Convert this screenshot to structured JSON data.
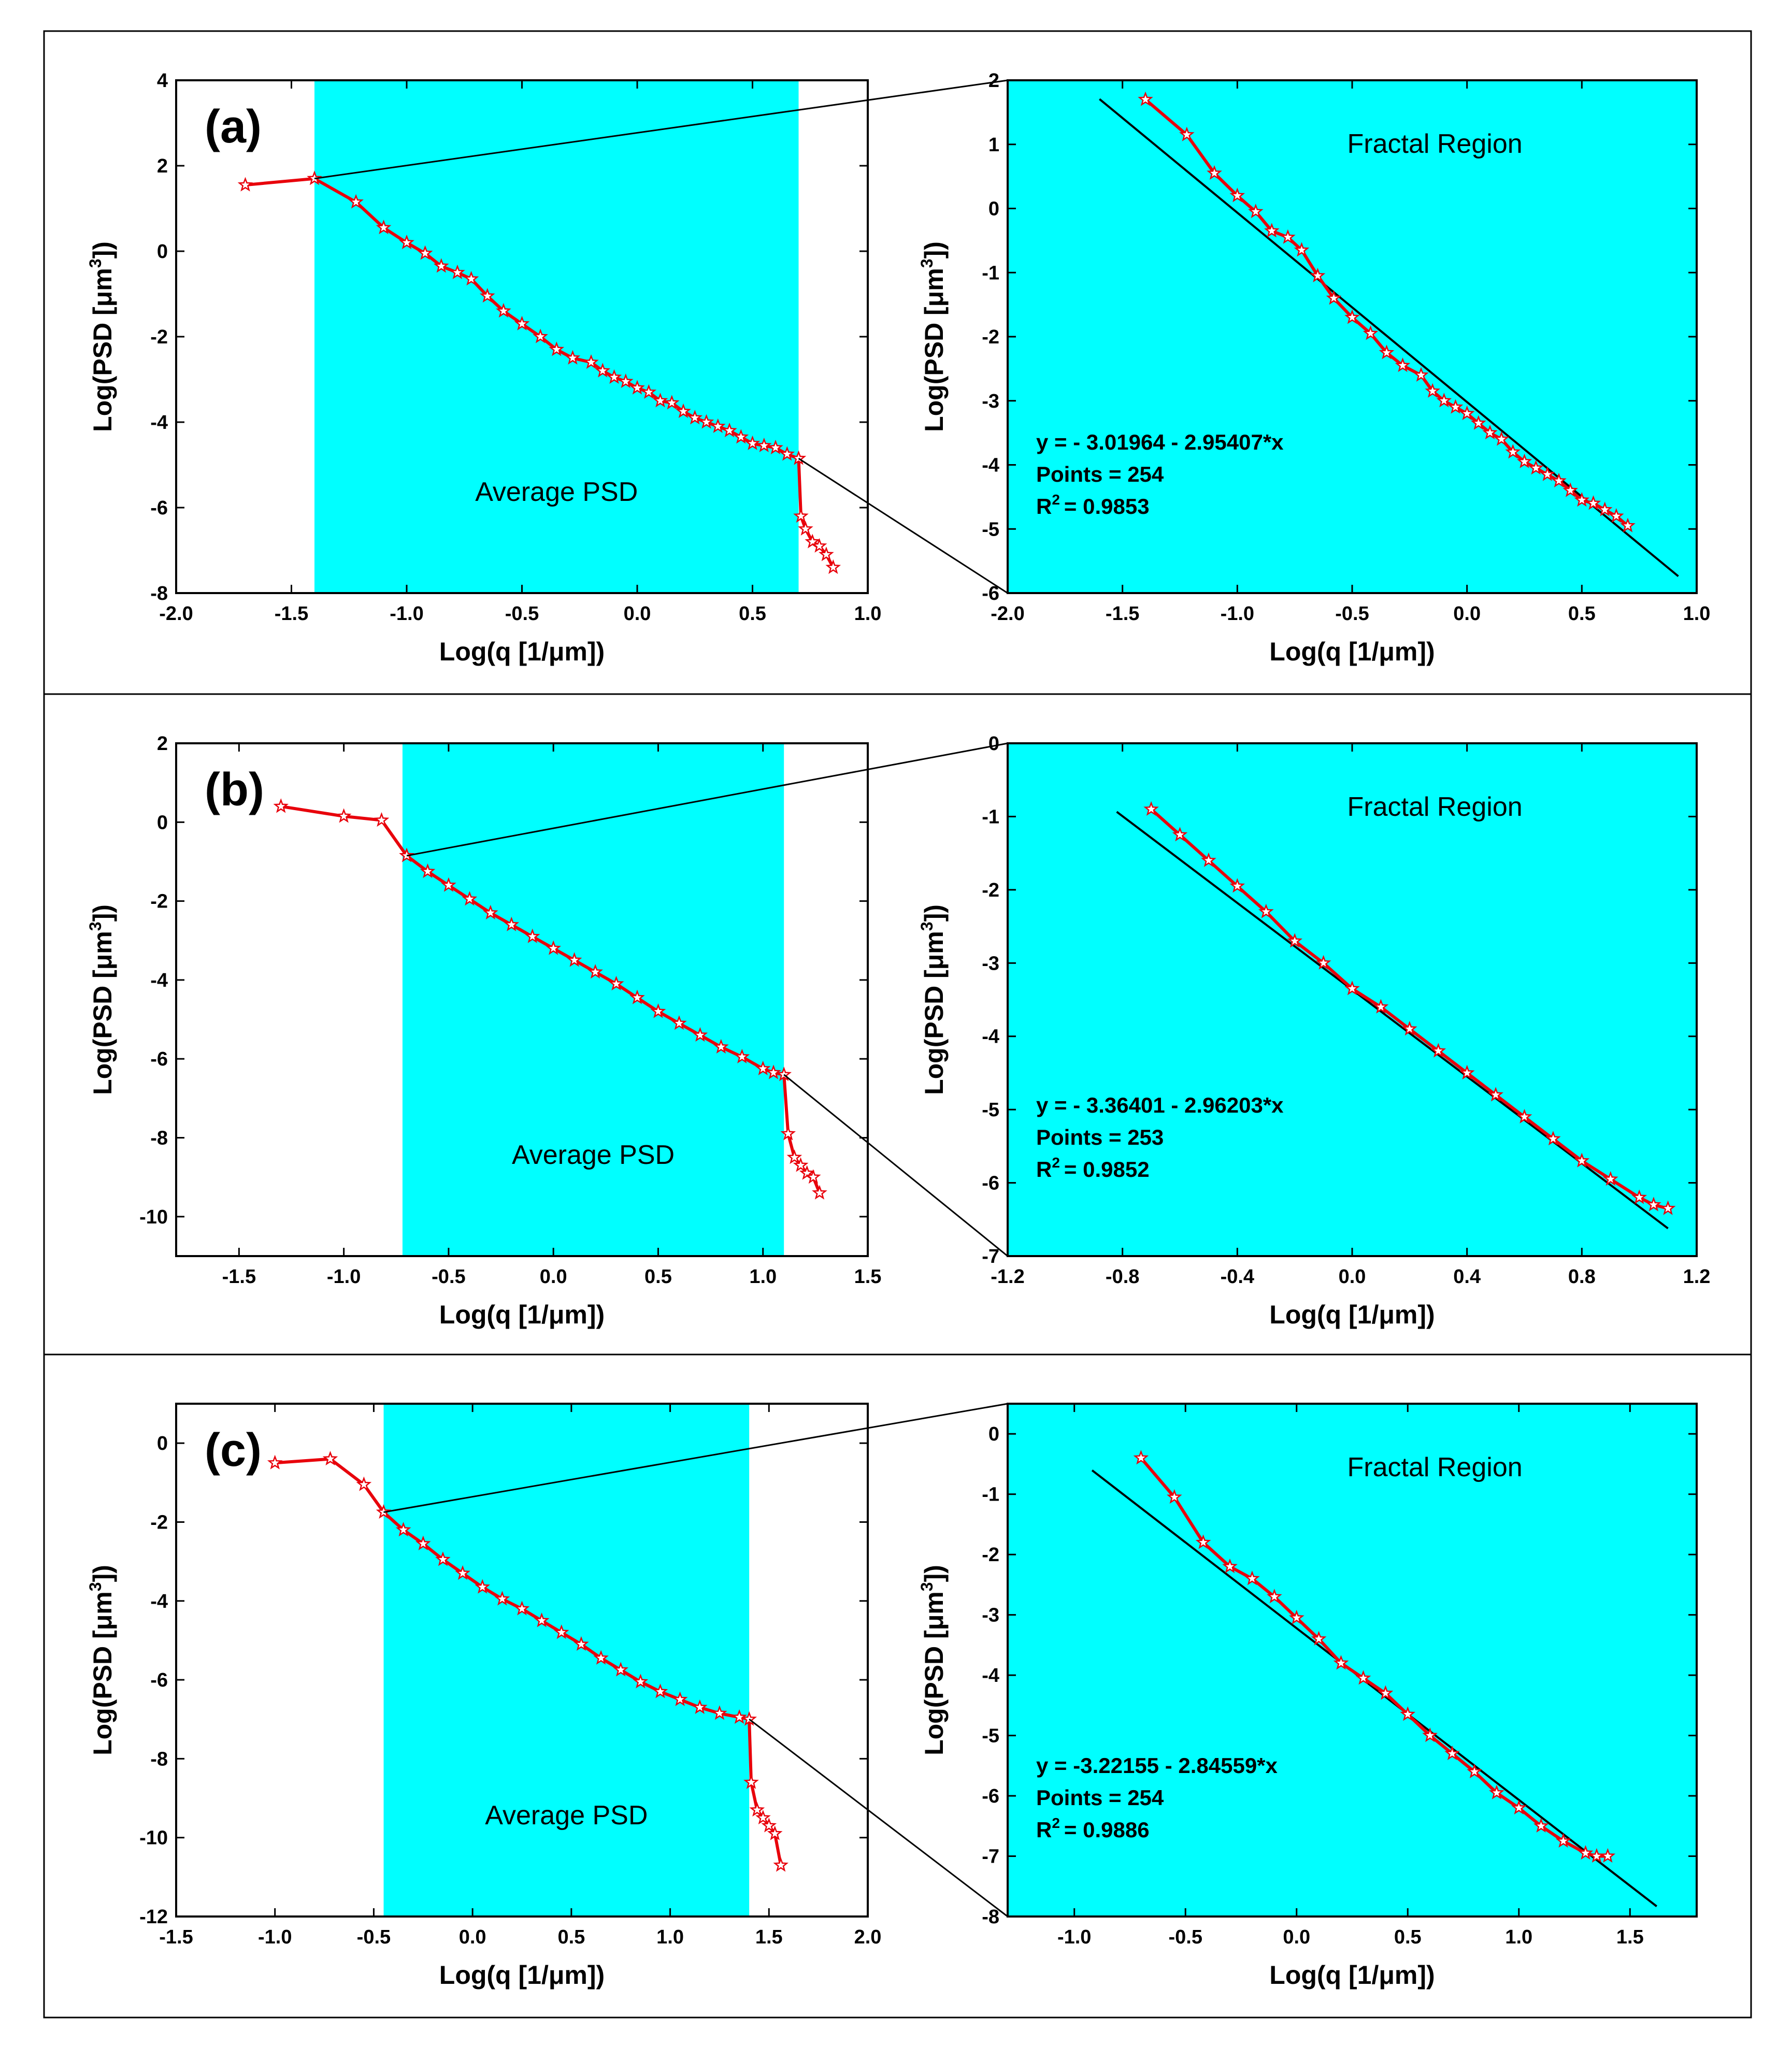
{
  "figure": {
    "colors": {
      "shade": "#00ffff",
      "data_line": "#e8000b",
      "marker_fill": "#ffffff",
      "fit_line": "#000000",
      "axis": "#000000"
    },
    "shared": {
      "xlabel": "Log(q [1/μm])",
      "ylabel_prefix": "Log(PSD [μm",
      "ylabel_sup": "3",
      "ylabel_suffix": "])"
    }
  },
  "chart_data": [
    {
      "id": "a",
      "type": "line",
      "panel_label": "(a)",
      "left": {
        "annotation": "Average PSD",
        "xlim": [
          -2.0,
          1.0
        ],
        "ylim": [
          -8,
          4
        ],
        "xticks": [
          "-2.0",
          "-1.5",
          "-1.0",
          "-0.5",
          "0.0",
          "0.5",
          "1.0"
        ],
        "yticks": [
          "-8",
          "-6",
          "-4",
          "-2",
          "0",
          "2",
          "4"
        ],
        "fractal_range": [
          -1.4,
          0.7
        ],
        "series": {
          "name": "Average PSD",
          "x": [
            -1.7,
            -1.4,
            -1.22,
            -1.1,
            -1.0,
            -0.92,
            -0.85,
            -0.78,
            -0.72,
            -0.65,
            -0.58,
            -0.5,
            -0.42,
            -0.35,
            -0.28,
            -0.2,
            -0.15,
            -0.1,
            -0.05,
            0.0,
            0.05,
            0.1,
            0.15,
            0.2,
            0.25,
            0.3,
            0.35,
            0.4,
            0.45,
            0.5,
            0.55,
            0.6,
            0.65,
            0.7,
            0.71,
            0.73,
            0.76,
            0.79,
            0.82,
            0.85
          ],
          "y": [
            1.55,
            1.7,
            1.15,
            0.55,
            0.2,
            -0.05,
            -0.35,
            -0.5,
            -0.65,
            -1.05,
            -1.4,
            -1.7,
            -2.0,
            -2.3,
            -2.5,
            -2.6,
            -2.8,
            -2.95,
            -3.05,
            -3.2,
            -3.3,
            -3.5,
            -3.55,
            -3.75,
            -3.9,
            -4.0,
            -4.1,
            -4.2,
            -4.35,
            -4.5,
            -4.55,
            -4.6,
            -4.75,
            -4.85,
            -6.2,
            -6.5,
            -6.8,
            -6.9,
            -7.1,
            -7.4
          ]
        }
      },
      "right": {
        "annotation": "Fractal Region",
        "xlim": [
          -2.0,
          1.0
        ],
        "ylim": [
          -6,
          2
        ],
        "xticks": [
          "-2.0",
          "-1.5",
          "-1.0",
          "-0.5",
          "0.0",
          "0.5",
          "1.0"
        ],
        "yticks": [
          "-6",
          "-5",
          "-4",
          "-3",
          "-2",
          "-1",
          "0",
          "1",
          "2"
        ],
        "fit": {
          "intercept": -3.01964,
          "slope": -2.95407,
          "x_range": [
            -1.6,
            0.92
          ]
        },
        "fit_text": [
          "y = - 3.01964 - 2.95407*x",
          "Points = 254",
          "= 0.9853"
        ],
        "series": {
          "name": "Fractal Region",
          "x": [
            -1.4,
            -1.22,
            -1.1,
            -1.0,
            -0.92,
            -0.85,
            -0.78,
            -0.72,
            -0.65,
            -0.58,
            -0.5,
            -0.42,
            -0.35,
            -0.28,
            -0.2,
            -0.15,
            -0.1,
            -0.05,
            0.0,
            0.05,
            0.1,
            0.15,
            0.2,
            0.25,
            0.3,
            0.35,
            0.4,
            0.45,
            0.5,
            0.55,
            0.6,
            0.65,
            0.7
          ],
          "y": [
            1.7,
            1.15,
            0.55,
            0.2,
            -0.05,
            -0.35,
            -0.45,
            -0.65,
            -1.05,
            -1.4,
            -1.7,
            -1.95,
            -2.25,
            -2.45,
            -2.6,
            -2.85,
            -3.0,
            -3.1,
            -3.2,
            -3.35,
            -3.5,
            -3.6,
            -3.8,
            -3.95,
            -4.05,
            -4.15,
            -4.25,
            -4.4,
            -4.55,
            -4.6,
            -4.7,
            -4.8,
            -4.95
          ]
        }
      }
    },
    {
      "id": "b",
      "type": "line",
      "panel_label": "(b)",
      "left": {
        "annotation": "Average PSD",
        "xlim": [
          -1.8,
          1.5
        ],
        "ylim": [
          -11,
          2
        ],
        "xticks": [
          "-1.5",
          "-1.0",
          "-0.5",
          "0.0",
          "0.5",
          "1.0",
          "1.5"
        ],
        "yticks": [
          "-10",
          "-8",
          "-6",
          "-4",
          "-2",
          "0",
          "2"
        ],
        "fractal_range": [
          -0.72,
          1.1
        ],
        "series": {
          "name": "Average PSD",
          "x": [
            -1.3,
            -1.0,
            -0.82,
            -0.7,
            -0.6,
            -0.5,
            -0.4,
            -0.3,
            -0.2,
            -0.1,
            0.0,
            0.1,
            0.2,
            0.3,
            0.4,
            0.5,
            0.6,
            0.7,
            0.8,
            0.9,
            1.0,
            1.05,
            1.1,
            1.12,
            1.15,
            1.18,
            1.21,
            1.24,
            1.27
          ],
          "y": [
            0.4,
            0.15,
            0.05,
            -0.85,
            -1.25,
            -1.6,
            -1.95,
            -2.3,
            -2.6,
            -2.9,
            -3.2,
            -3.5,
            -3.8,
            -4.1,
            -4.45,
            -4.8,
            -5.1,
            -5.4,
            -5.7,
            -5.95,
            -6.25,
            -6.35,
            -6.4,
            -7.9,
            -8.5,
            -8.7,
            -8.9,
            -9.0,
            -9.4
          ]
        }
      },
      "right": {
        "annotation": "Fractal Region",
        "xlim": [
          -1.2,
          1.2
        ],
        "ylim": [
          -7,
          0
        ],
        "xticks": [
          "-1.2",
          "-0.8",
          "-0.4",
          "0.0",
          "0.4",
          "0.8",
          "1.2"
        ],
        "yticks": [
          "-7",
          "-6",
          "-5",
          "-4",
          "-3",
          "-2",
          "-1",
          "0"
        ],
        "fit": {
          "intercept": -3.36401,
          "slope": -2.96203,
          "x_range": [
            -0.82,
            1.1
          ]
        },
        "fit_text": [
          "y = - 3.36401 - 2.96203*x",
          "Points = 253",
          "= 0.9852"
        ],
        "series": {
          "name": "Fractal Region",
          "x": [
            -0.7,
            -0.6,
            -0.5,
            -0.4,
            -0.3,
            -0.2,
            -0.1,
            0.0,
            0.1,
            0.2,
            0.3,
            0.4,
            0.5,
            0.6,
            0.7,
            0.8,
            0.9,
            1.0,
            1.05,
            1.1
          ],
          "y": [
            -0.9,
            -1.25,
            -1.6,
            -1.95,
            -2.3,
            -2.7,
            -3.0,
            -3.35,
            -3.6,
            -3.9,
            -4.2,
            -4.5,
            -4.8,
            -5.1,
            -5.4,
            -5.7,
            -5.95,
            -6.2,
            -6.3,
            -6.35
          ]
        }
      }
    },
    {
      "id": "c",
      "type": "line",
      "panel_label": "(c)",
      "left": {
        "annotation": "Average PSD",
        "xlim": [
          -1.5,
          2.0
        ],
        "ylim": [
          -12,
          1
        ],
        "xticks": [
          "-1.5",
          "-1.0",
          "-0.5",
          "0.0",
          "0.5",
          "1.0",
          "1.5",
          "2.0"
        ],
        "yticks": [
          "-12",
          "-10",
          "-8",
          "-6",
          "-4",
          "-2",
          "0"
        ],
        "fractal_range": [
          -0.45,
          1.4
        ],
        "series": {
          "name": "Average PSD",
          "x": [
            -1.0,
            -0.72,
            -0.55,
            -0.45,
            -0.35,
            -0.25,
            -0.15,
            -0.05,
            0.05,
            0.15,
            0.25,
            0.35,
            0.45,
            0.55,
            0.65,
            0.75,
            0.85,
            0.95,
            1.05,
            1.15,
            1.25,
            1.35,
            1.4,
            1.41,
            1.44,
            1.47,
            1.5,
            1.53,
            1.56
          ],
          "y": [
            -0.5,
            -0.4,
            -1.05,
            -1.75,
            -2.2,
            -2.55,
            -2.95,
            -3.3,
            -3.65,
            -3.95,
            -4.2,
            -4.5,
            -4.8,
            -5.1,
            -5.45,
            -5.75,
            -6.05,
            -6.3,
            -6.5,
            -6.7,
            -6.85,
            -6.95,
            -7.0,
            -8.6,
            -9.3,
            -9.5,
            -9.7,
            -9.9,
            -10.7
          ]
        }
      },
      "right": {
        "annotation": "Fractal Region",
        "xlim": [
          -1.3,
          1.8
        ],
        "ylim": [
          -8,
          0.5
        ],
        "xticks": [
          "-1.0",
          "-0.5",
          "0.0",
          "0.5",
          "1.0",
          "1.5"
        ],
        "yticks": [
          "-8",
          "-7",
          "-6",
          "-5",
          "-4",
          "-3",
          "-2",
          "-1",
          "0"
        ],
        "fit": {
          "intercept": -3.22155,
          "slope": -2.84559,
          "x_range": [
            -0.92,
            1.62
          ]
        },
        "fit_text": [
          "y = -3.22155 - 2.84559*x",
          "Points = 254",
          "= 0.9886"
        ],
        "series": {
          "name": "Fractal Region",
          "x": [
            -0.7,
            -0.55,
            -0.42,
            -0.3,
            -0.2,
            -0.1,
            0.0,
            0.1,
            0.2,
            0.3,
            0.4,
            0.5,
            0.6,
            0.7,
            0.8,
            0.9,
            1.0,
            1.1,
            1.2,
            1.3,
            1.35,
            1.4
          ],
          "y": [
            -0.4,
            -1.05,
            -1.8,
            -2.2,
            -2.4,
            -2.7,
            -3.05,
            -3.4,
            -3.8,
            -4.05,
            -4.3,
            -4.65,
            -5.0,
            -5.3,
            -5.6,
            -5.95,
            -6.2,
            -6.5,
            -6.75,
            -6.95,
            -7.0,
            -7.0
          ]
        }
      }
    }
  ]
}
